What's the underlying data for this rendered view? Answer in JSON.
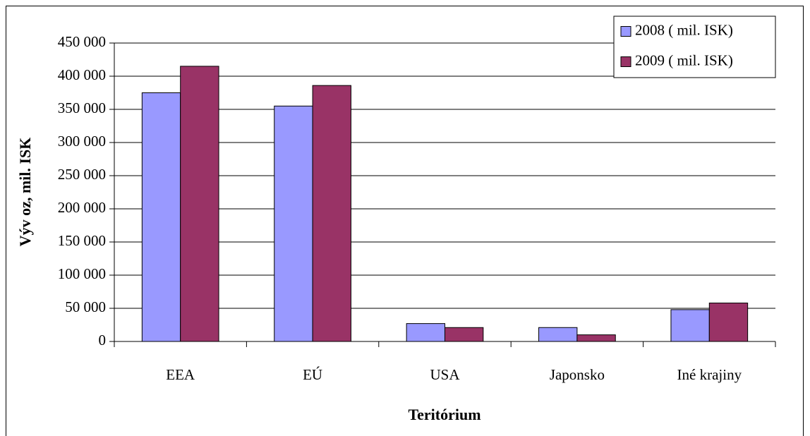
{
  "chart_data": {
    "type": "bar",
    "y_label": "Výv oz, mil. ISK",
    "x_label": "Teritórium",
    "categories": [
      "EEA",
      "EÚ",
      "USA",
      "Japonsko",
      "Iné krajiny"
    ],
    "series": [
      {
        "name": "2008 ( mil. ISK)",
        "color": "#9999ff",
        "values": [
          375000,
          355000,
          27000,
          21000,
          48000
        ]
      },
      {
        "name": "2009 ( mil. ISK)",
        "color": "#993366",
        "values": [
          415000,
          386000,
          21000,
          10000,
          58000
        ]
      }
    ],
    "ylim": [
      0,
      450000
    ],
    "yticks": [
      0,
      {
        "value": 50000,
        "label": "50 000"
      },
      {
        "value": 100000,
        "label": "100 000"
      },
      {
        "value": 150000,
        "label": "150 000"
      },
      {
        "value": 200000,
        "label": "200 000"
      },
      {
        "value": 250000,
        "label": "250 000"
      },
      {
        "value": 300000,
        "label": "300 000"
      },
      {
        "value": 350000,
        "label": "350 000"
      },
      {
        "value": 400000,
        "label": "400 000"
      },
      {
        "value": 450000,
        "label": "450 000"
      }
    ],
    "grid": true,
    "legend": "top-right"
  }
}
